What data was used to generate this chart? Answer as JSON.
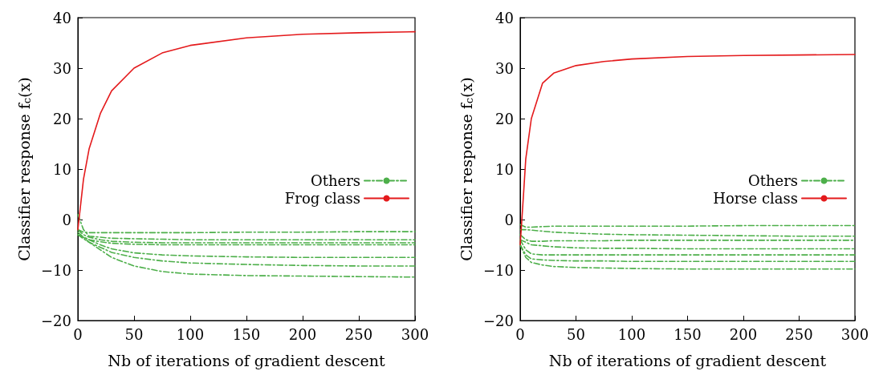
{
  "chart_data": [
    {
      "type": "line",
      "xlabel": "Nb of iterations of gradient descent",
      "ylabel": "Classifier response f$_{c}$(x)",
      "xlim": [
        0,
        300
      ],
      "xticks": [
        0,
        50,
        100,
        150,
        200,
        250,
        300
      ],
      "ylim": [
        -20,
        40
      ],
      "yticks": [
        -20,
        -10,
        0,
        10,
        20,
        30,
        40
      ],
      "legend": "right",
      "marker": "none",
      "series": [
        {
          "name": "Others",
          "color": "#4daf4a",
          "line_style": "dashed",
          "x": [
            0,
            5,
            10,
            20,
            30,
            50,
            75,
            100,
            150,
            200,
            250,
            300
          ],
          "values": [
            -2,
            -2.5,
            -2.6,
            -2.6,
            -2.6,
            -2.6,
            -2.6,
            -2.6,
            -2.5,
            -2.5,
            -2.4,
            -2.4
          ]
        },
        {
          "color": "#4daf4a",
          "line_style": "dashed",
          "x": [
            0,
            5,
            10,
            20,
            30,
            50,
            75,
            100,
            150,
            200,
            250,
            300
          ],
          "values": [
            1,
            -2,
            -3.3,
            -3.5,
            -3.7,
            -3.8,
            -3.9,
            -4,
            -4,
            -4,
            -4,
            -4
          ]
        },
        {
          "color": "#4daf4a",
          "line_style": "dashed",
          "x": [
            0,
            5,
            10,
            20,
            30,
            50,
            75,
            100,
            150,
            200,
            250,
            300
          ],
          "values": [
            -2,
            -3,
            -3.5,
            -4,
            -4.3,
            -4.5,
            -4.6,
            -4.6,
            -4.6,
            -4.6,
            -4.6,
            -4.6
          ]
        },
        {
          "color": "#4daf4a",
          "line_style": "dashed",
          "x": [
            0,
            5,
            10,
            20,
            30,
            50,
            75,
            100,
            150,
            200,
            250,
            300
          ],
          "values": [
            -3,
            -3.5,
            -4,
            -4.4,
            -4.7,
            -4.9,
            -5,
            -5,
            -5,
            -5,
            -5,
            -5
          ]
        },
        {
          "color": "#4daf4a",
          "line_style": "dashed",
          "x": [
            0,
            5,
            10,
            20,
            30,
            50,
            75,
            100,
            150,
            200,
            250,
            300
          ],
          "values": [
            -3,
            -3.5,
            -4,
            -5,
            -5.8,
            -6.6,
            -7,
            -7.2,
            -7.4,
            -7.5,
            -7.5,
            -7.5
          ]
        },
        {
          "color": "#4daf4a",
          "line_style": "dashed",
          "x": [
            0,
            5,
            10,
            20,
            30,
            50,
            75,
            100,
            150,
            200,
            250,
            300
          ],
          "values": [
            -3,
            -3.8,
            -4.5,
            -5.5,
            -6.5,
            -7.5,
            -8.2,
            -8.6,
            -8.9,
            -9.1,
            -9.2,
            -9.2
          ]
        },
        {
          "color": "#4daf4a",
          "line_style": "dashed",
          "x": [
            0,
            5,
            10,
            20,
            30,
            50,
            75,
            100,
            150,
            200,
            250,
            300
          ],
          "values": [
            -2.5,
            -3.5,
            -4.5,
            -6,
            -7.5,
            -9.2,
            -10.3,
            -10.8,
            -11.1,
            -11.2,
            -11.3,
            -11.4
          ]
        },
        {
          "name": "Frog class",
          "color": "#e41a1c",
          "line_style": "solid",
          "x": [
            0,
            5,
            10,
            20,
            30,
            50,
            75,
            100,
            150,
            200,
            250,
            300
          ],
          "values": [
            -2,
            8,
            14,
            21,
            25.5,
            30,
            33,
            34.5,
            36,
            36.7,
            37,
            37.2
          ]
        }
      ]
    },
    {
      "type": "line",
      "xlabel": "Nb of iterations of gradient descent",
      "ylabel": "Classifier response f$_{c}$(x)",
      "xlim": [
        0,
        300
      ],
      "xticks": [
        0,
        50,
        100,
        150,
        200,
        250,
        300
      ],
      "ylim": [
        -20,
        40
      ],
      "yticks": [
        -20,
        -10,
        0,
        10,
        20,
        30,
        40
      ],
      "legend": "right",
      "marker": "none",
      "series": [
        {
          "name": "Others",
          "color": "#4daf4a",
          "line_style": "dashed",
          "x": [
            0,
            5,
            10,
            20,
            30,
            50,
            75,
            100,
            150,
            200,
            250,
            300
          ],
          "values": [
            -1,
            -1.5,
            -1.5,
            -1.4,
            -1.3,
            -1.3,
            -1.3,
            -1.3,
            -1.3,
            -1.2,
            -1.2,
            -1.2
          ]
        },
        {
          "color": "#4daf4a",
          "line_style": "dashed",
          "x": [
            0,
            5,
            10,
            20,
            30,
            50,
            75,
            100,
            150,
            200,
            250,
            300
          ],
          "values": [
            -2,
            -2,
            -2.1,
            -2.3,
            -2.5,
            -2.7,
            -2.9,
            -3,
            -3.1,
            -3.2,
            -3.3,
            -3.3
          ]
        },
        {
          "color": "#4daf4a",
          "line_style": "dashed",
          "x": [
            0,
            5,
            10,
            20,
            30,
            50,
            75,
            100,
            150,
            200,
            250,
            300
          ],
          "values": [
            -3,
            -4,
            -4.3,
            -4.3,
            -4.2,
            -4.2,
            -4.2,
            -4.1,
            -4.1,
            -4.1,
            -4.1,
            -4.1
          ]
        },
        {
          "color": "#4daf4a",
          "line_style": "dashed",
          "x": [
            0,
            5,
            10,
            20,
            30,
            50,
            75,
            100,
            150,
            200,
            250,
            300
          ],
          "values": [
            -4,
            -4.5,
            -5,
            -5.2,
            -5.4,
            -5.6,
            -5.7,
            -5.7,
            -5.8,
            -5.8,
            -5.8,
            -5.8
          ]
        },
        {
          "color": "#4daf4a",
          "line_style": "dashed",
          "x": [
            0,
            5,
            10,
            20,
            30,
            50,
            75,
            100,
            150,
            200,
            250,
            300
          ],
          "values": [
            -4,
            -6,
            -6.8,
            -7,
            -7,
            -7,
            -7,
            -7,
            -7,
            -7,
            -7,
            -7
          ]
        },
        {
          "color": "#4daf4a",
          "line_style": "dashed",
          "x": [
            0,
            5,
            10,
            20,
            30,
            50,
            75,
            100,
            150,
            200,
            250,
            300
          ],
          "values": [
            -5,
            -7,
            -7.8,
            -8,
            -8.1,
            -8.2,
            -8.2,
            -8.3,
            -8.3,
            -8.3,
            -8.3,
            -8.3
          ]
        },
        {
          "color": "#4daf4a",
          "line_style": "dashed",
          "x": [
            0,
            5,
            10,
            20,
            30,
            50,
            75,
            100,
            150,
            200,
            250,
            300
          ],
          "values": [
            -5,
            -7.5,
            -8.5,
            -9,
            -9.3,
            -9.5,
            -9.6,
            -9.7,
            -9.8,
            -9.8,
            -9.8,
            -9.8
          ]
        },
        {
          "name": "Horse class",
          "color": "#e41a1c",
          "line_style": "solid",
          "x": [
            0,
            3,
            5,
            10,
            20,
            30,
            50,
            75,
            100,
            150,
            200,
            250,
            300
          ],
          "values": [
            -5,
            5,
            12,
            20,
            27,
            29,
            30.5,
            31.3,
            31.8,
            32.3,
            32.5,
            32.6,
            32.7
          ]
        }
      ]
    }
  ]
}
